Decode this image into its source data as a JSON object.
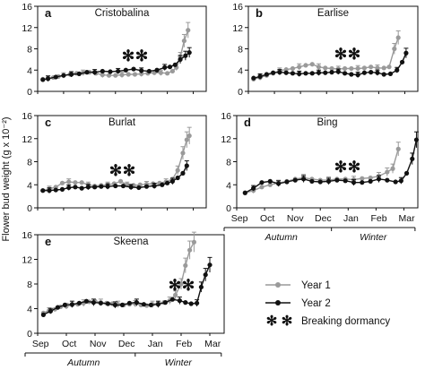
{
  "figure": {
    "ylabel": "Flower bud weight (g x 10⁻²)",
    "legend": {
      "entries": [
        {
          "label": "Year 1",
          "color": "#9a9a9a"
        },
        {
          "label": "Year 2",
          "color": "#111111"
        },
        {
          "label": "Breaking dormancy",
          "icon": "snowflake-icon"
        }
      ]
    },
    "months": [
      "Sep",
      "Oct",
      "Nov",
      "Dec",
      "Jan",
      "Feb",
      "Mar"
    ],
    "seasons": [
      "Autumn",
      "Winter"
    ],
    "colors": {
      "year1": "#9a9a9a",
      "year2": "#111111"
    }
  },
  "chart_data": [
    {
      "panel": "a",
      "title": "Cristobalina",
      "type": "line",
      "ylim": [
        0,
        16
      ],
      "yticks": [
        0,
        4,
        8,
        12,
        16
      ],
      "series": [
        {
          "name": "Year 1",
          "points": [
            [
              0.2,
              2.3
            ],
            [
              0.4,
              2.4
            ],
            [
              0.6,
              2.6
            ],
            [
              0.8,
              2.8
            ],
            [
              1.0,
              3.0
            ],
            [
              1.25,
              3.2
            ],
            [
              1.5,
              3.4
            ],
            [
              1.75,
              3.5
            ],
            [
              2.0,
              3.6
            ],
            [
              2.25,
              3.4
            ],
            [
              2.5,
              3.1
            ],
            [
              2.75,
              3.0
            ],
            [
              3.0,
              3.0
            ],
            [
              3.25,
              3.1
            ],
            [
              3.5,
              3.2
            ],
            [
              3.75,
              3.2
            ],
            [
              4.0,
              3.3
            ],
            [
              4.25,
              3.4
            ],
            [
              4.5,
              3.5
            ],
            [
              4.75,
              3.5
            ],
            [
              5.0,
              3.4
            ],
            [
              5.2,
              3.8
            ],
            [
              5.35,
              4.5
            ],
            [
              5.5,
              6.5
            ],
            [
              5.65,
              9.5
            ],
            [
              5.8,
              11.5
            ]
          ]
        },
        {
          "name": "Year 2",
          "points": [
            [
              0.2,
              2.2
            ],
            [
              0.4,
              2.4
            ],
            [
              0.7,
              2.7
            ],
            [
              1.0,
              3.0
            ],
            [
              1.3,
              3.2
            ],
            [
              1.6,
              3.3
            ],
            [
              1.9,
              3.6
            ],
            [
              2.2,
              3.6
            ],
            [
              2.5,
              3.8
            ],
            [
              2.8,
              3.7
            ],
            [
              3.1,
              3.8
            ],
            [
              3.4,
              4.0
            ],
            [
              3.7,
              4.2
            ],
            [
              4.0,
              3.9
            ],
            [
              4.3,
              3.8
            ],
            [
              4.6,
              4.0
            ],
            [
              4.9,
              4.5
            ],
            [
              5.1,
              4.6
            ],
            [
              5.3,
              5.0
            ],
            [
              5.5,
              6.0
            ],
            [
              5.7,
              6.7
            ],
            [
              5.85,
              7.3
            ]
          ]
        }
      ]
    },
    {
      "panel": "b",
      "title": "Earlise",
      "type": "line",
      "ylim": [
        0,
        16
      ],
      "yticks": [
        0,
        4,
        8,
        12,
        16
      ],
      "series": [
        {
          "name": "Year 1",
          "points": [
            [
              0.2,
              2.3
            ],
            [
              0.45,
              2.6
            ],
            [
              0.7,
              3.0
            ],
            [
              0.95,
              3.4
            ],
            [
              1.2,
              3.9
            ],
            [
              1.45,
              4.1
            ],
            [
              1.7,
              4.3
            ],
            [
              1.95,
              4.6
            ],
            [
              2.2,
              4.9
            ],
            [
              2.45,
              5.1
            ],
            [
              2.7,
              4.6
            ],
            [
              2.95,
              4.4
            ],
            [
              3.2,
              4.3
            ],
            [
              3.45,
              4.2
            ],
            [
              3.7,
              4.3
            ],
            [
              3.95,
              4.3
            ],
            [
              4.2,
              4.3
            ],
            [
              4.45,
              4.4
            ],
            [
              4.7,
              4.6
            ],
            [
              4.95,
              4.4
            ],
            [
              5.2,
              4.4
            ],
            [
              5.4,
              4.6
            ],
            [
              5.6,
              8.0
            ],
            [
              5.75,
              10.1
            ]
          ]
        },
        {
          "name": "Year 2",
          "points": [
            [
              0.2,
              2.5
            ],
            [
              0.45,
              2.8
            ],
            [
              0.7,
              3.2
            ],
            [
              0.95,
              3.5
            ],
            [
              1.2,
              3.6
            ],
            [
              1.45,
              3.5
            ],
            [
              1.7,
              3.4
            ],
            [
              1.95,
              3.3
            ],
            [
              2.2,
              3.4
            ],
            [
              2.45,
              3.4
            ],
            [
              2.7,
              3.5
            ],
            [
              2.95,
              3.5
            ],
            [
              3.2,
              3.6
            ],
            [
              3.45,
              3.7
            ],
            [
              3.7,
              3.4
            ],
            [
              3.95,
              3.2
            ],
            [
              4.2,
              3.1
            ],
            [
              4.45,
              3.5
            ],
            [
              4.7,
              3.6
            ],
            [
              4.95,
              3.5
            ],
            [
              5.2,
              3.2
            ],
            [
              5.45,
              3.3
            ],
            [
              5.7,
              4.0
            ],
            [
              5.9,
              5.5
            ],
            [
              6.05,
              7.2
            ]
          ]
        }
      ]
    },
    {
      "panel": "c",
      "title": "Burlat",
      "type": "line",
      "ylim": [
        0,
        16
      ],
      "yticks": [
        0,
        4,
        8,
        12,
        16
      ],
      "series": [
        {
          "name": "Year 1",
          "points": [
            [
              0.2,
              3.0
            ],
            [
              0.45,
              3.3
            ],
            [
              0.7,
              3.6
            ],
            [
              0.95,
              4.3
            ],
            [
              1.2,
              4.5
            ],
            [
              1.45,
              4.4
            ],
            [
              1.7,
              4.4
            ],
            [
              1.95,
              4.0
            ],
            [
              2.2,
              3.8
            ],
            [
              2.45,
              3.9
            ],
            [
              2.7,
              4.0
            ],
            [
              2.95,
              4.2
            ],
            [
              3.2,
              4.6
            ],
            [
              3.45,
              4.0
            ],
            [
              3.7,
              3.9
            ],
            [
              3.95,
              4.0
            ],
            [
              4.2,
              4.1
            ],
            [
              4.45,
              4.2
            ],
            [
              4.7,
              4.3
            ],
            [
              4.95,
              4.5
            ],
            [
              5.2,
              5.0
            ],
            [
              5.4,
              6.5
            ],
            [
              5.6,
              9.5
            ],
            [
              5.75,
              11.8
            ],
            [
              5.85,
              12.5
            ]
          ]
        },
        {
          "name": "Year 2",
          "points": [
            [
              0.2,
              3.0
            ],
            [
              0.45,
              3.0
            ],
            [
              0.7,
              3.1
            ],
            [
              0.95,
              3.2
            ],
            [
              1.2,
              3.5
            ],
            [
              1.45,
              3.6
            ],
            [
              1.7,
              3.4
            ],
            [
              1.95,
              3.6
            ],
            [
              2.2,
              3.6
            ],
            [
              2.45,
              3.7
            ],
            [
              2.7,
              3.7
            ],
            [
              3.0,
              3.8
            ],
            [
              3.3,
              3.8
            ],
            [
              3.6,
              3.6
            ],
            [
              3.9,
              3.5
            ],
            [
              4.2,
              3.7
            ],
            [
              4.5,
              3.8
            ],
            [
              4.8,
              4.0
            ],
            [
              5.0,
              4.3
            ],
            [
              5.2,
              4.6
            ],
            [
              5.4,
              5.2
            ],
            [
              5.6,
              6.0
            ],
            [
              5.75,
              7.3
            ]
          ]
        }
      ]
    },
    {
      "panel": "d",
      "title": "Bing",
      "type": "line",
      "ylim": [
        0,
        16
      ],
      "yticks": [
        0,
        4,
        8,
        12,
        16
      ],
      "series": [
        {
          "name": "Year 1",
          "points": [
            [
              0.3,
              2.6
            ],
            [
              0.6,
              3.0
            ],
            [
              0.9,
              3.6
            ],
            [
              1.2,
              4.0
            ],
            [
              1.5,
              4.3
            ],
            [
              1.8,
              4.6
            ],
            [
              2.1,
              5.0
            ],
            [
              2.4,
              5.2
            ],
            [
              2.7,
              5.0
            ],
            [
              3.0,
              4.8
            ],
            [
              3.3,
              4.8
            ],
            [
              3.6,
              5.0
            ],
            [
              3.9,
              5.0
            ],
            [
              4.2,
              4.9
            ],
            [
              4.5,
              5.1
            ],
            [
              4.8,
              5.2
            ],
            [
              5.1,
              5.5
            ],
            [
              5.4,
              6.2
            ],
            [
              5.6,
              6.8
            ],
            [
              5.8,
              10.2
            ]
          ]
        },
        {
          "name": "Year 2",
          "points": [
            [
              0.3,
              2.6
            ],
            [
              0.6,
              3.4
            ],
            [
              0.9,
              4.4
            ],
            [
              1.2,
              4.6
            ],
            [
              1.5,
              4.2
            ],
            [
              1.8,
              4.5
            ],
            [
              2.1,
              4.8
            ],
            [
              2.4,
              5.0
            ],
            [
              2.7,
              4.6
            ],
            [
              3.0,
              4.5
            ],
            [
              3.3,
              4.6
            ],
            [
              3.6,
              4.8
            ],
            [
              3.9,
              4.7
            ],
            [
              4.2,
              4.4
            ],
            [
              4.5,
              4.4
            ],
            [
              4.8,
              4.6
            ],
            [
              5.1,
              5.0
            ],
            [
              5.4,
              4.8
            ],
            [
              5.7,
              4.5
            ],
            [
              5.9,
              4.7
            ],
            [
              6.1,
              6.0
            ],
            [
              6.3,
              8.5
            ],
            [
              6.45,
              11.8
            ]
          ]
        }
      ]
    },
    {
      "panel": "e",
      "title": "Skeena",
      "type": "line",
      "ylim": [
        0,
        16
      ],
      "yticks": [
        0,
        4,
        8,
        12,
        16
      ],
      "series": [
        {
          "name": "Year 1",
          "points": [
            [
              0.2,
              3.3
            ],
            [
              0.4,
              3.7
            ],
            [
              0.6,
              3.9
            ],
            [
              0.8,
              4.3
            ],
            [
              1.0,
              4.4
            ],
            [
              1.2,
              4.6
            ],
            [
              1.4,
              4.7
            ],
            [
              1.6,
              4.9
            ],
            [
              1.8,
              5.1
            ],
            [
              2.0,
              5.2
            ],
            [
              2.2,
              5.0
            ],
            [
              2.4,
              4.9
            ],
            [
              2.6,
              4.8
            ],
            [
              2.8,
              4.7
            ],
            [
              3.0,
              4.6
            ],
            [
              3.2,
              4.7
            ],
            [
              3.4,
              4.8
            ],
            [
              3.6,
              4.6
            ],
            [
              3.8,
              4.5
            ],
            [
              4.0,
              4.7
            ],
            [
              4.2,
              4.9
            ],
            [
              4.4,
              5.0
            ],
            [
              4.6,
              5.3
            ],
            [
              4.8,
              6.2
            ],
            [
              5.0,
              8.0
            ],
            [
              5.15,
              11.0
            ],
            [
              5.3,
              13.5
            ],
            [
              5.45,
              14.8
            ]
          ]
        },
        {
          "name": "Year 2",
          "points": [
            [
              0.2,
              3.0
            ],
            [
              0.45,
              3.6
            ],
            [
              0.7,
              4.2
            ],
            [
              0.95,
              4.6
            ],
            [
              1.2,
              4.7
            ],
            [
              1.45,
              4.9
            ],
            [
              1.7,
              5.2
            ],
            [
              1.95,
              5.0
            ],
            [
              2.2,
              4.9
            ],
            [
              2.45,
              4.8
            ],
            [
              2.7,
              4.6
            ],
            [
              2.95,
              4.6
            ],
            [
              3.2,
              4.9
            ],
            [
              3.45,
              5.0
            ],
            [
              3.7,
              4.7
            ],
            [
              3.95,
              4.6
            ],
            [
              4.2,
              4.7
            ],
            [
              4.45,
              5.0
            ],
            [
              4.7,
              5.5
            ],
            [
              4.95,
              5.3
            ],
            [
              5.15,
              5.0
            ],
            [
              5.35,
              4.8
            ],
            [
              5.55,
              4.9
            ],
            [
              5.7,
              7.5
            ],
            [
              5.85,
              9.5
            ],
            [
              6.0,
              11.1
            ]
          ]
        }
      ]
    }
  ]
}
